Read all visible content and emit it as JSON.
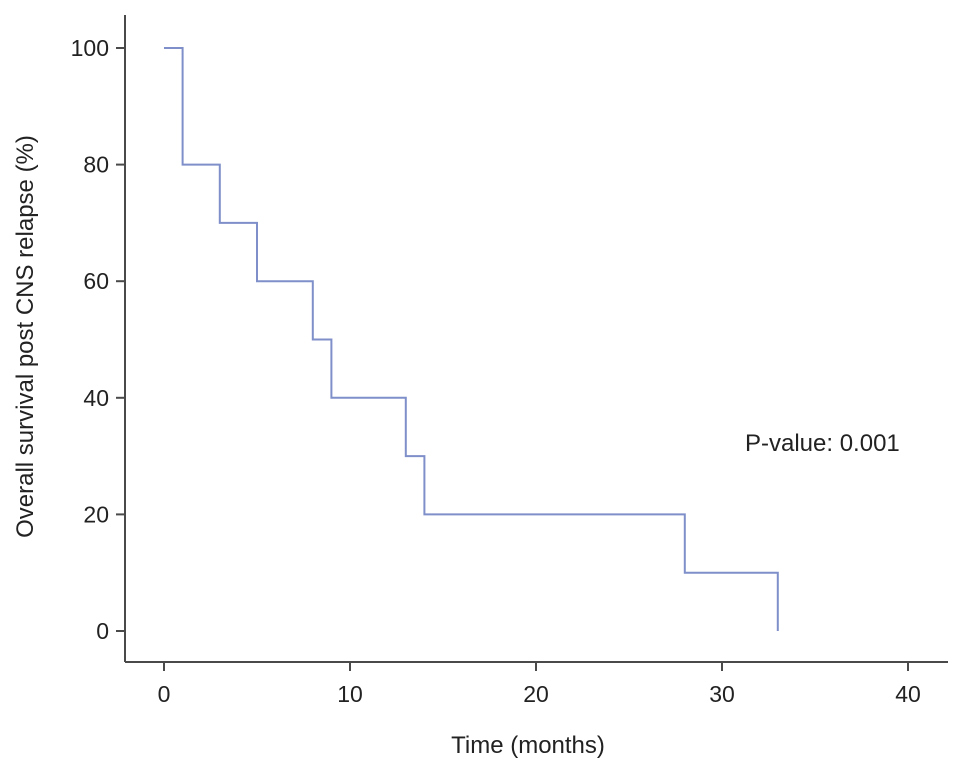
{
  "chart_data": {
    "type": "line",
    "subtype": "step (Kaplan-Meier survival curve)",
    "title": "",
    "xlabel": "Time (months)",
    "ylabel": "Overall survival post CNS relapse (%)",
    "xlim": [
      0,
      40
    ],
    "ylim": [
      0,
      100
    ],
    "xticks": [
      0,
      10,
      20,
      30,
      40
    ],
    "yticks": [
      0,
      20,
      40,
      60,
      80,
      100
    ],
    "grid": false,
    "legend": "none",
    "series": [
      {
        "color": "#7f8fc9",
        "steps": [
          {
            "x": 0,
            "y": 100
          },
          {
            "x": 1,
            "y": 80
          },
          {
            "x": 3,
            "y": 70
          },
          {
            "x": 5,
            "y": 60
          },
          {
            "x": 8,
            "y": 50
          },
          {
            "x": 9,
            "y": 40
          },
          {
            "x": 13,
            "y": 30
          },
          {
            "x": 14,
            "y": 20
          },
          {
            "x": 28,
            "y": 10
          },
          {
            "x": 33,
            "y": 0
          }
        ]
      }
    ],
    "annotations": [
      {
        "text": "P-value: 0.001"
      }
    ]
  }
}
